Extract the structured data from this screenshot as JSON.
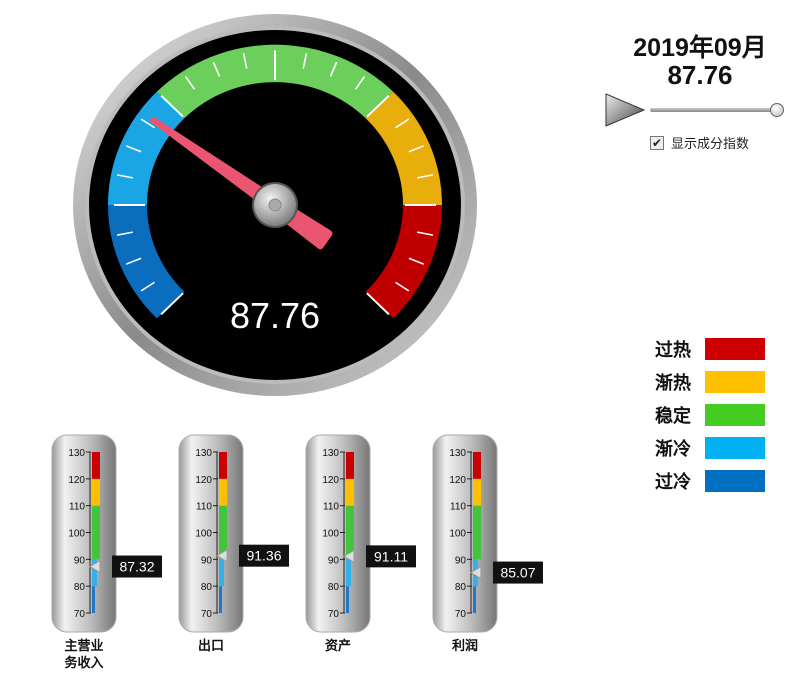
{
  "header": {
    "period": "2019年09月",
    "value": "87.76",
    "checkbox_label": "显示成分指数",
    "checkbox_checked": true,
    "slider_position": 1.0
  },
  "legend": [
    {
      "label": "过热",
      "color": "#cc0000"
    },
    {
      "label": "渐热",
      "color": "#ffc000"
    },
    {
      "label": "稳定",
      "color": "#44cc22"
    },
    {
      "label": "渐冷",
      "color": "#00b0f0"
    },
    {
      "label": "过冷",
      "color": "#0070c0"
    }
  ],
  "chart_data": [
    {
      "type": "gauge",
      "value": 87.76,
      "value_label": "87.76",
      "range": [
        70,
        130
      ],
      "bands": [
        {
          "from": 70,
          "to": 80,
          "color": "#0a6dbd"
        },
        {
          "from": 80,
          "to": 90,
          "color": "#1aa6e4"
        },
        {
          "from": 90,
          "to": 110,
          "color": "#6ccf5c"
        },
        {
          "from": 110,
          "to": 120,
          "color": "#e8ae0c"
        },
        {
          "from": 120,
          "to": 130,
          "color": "#c00000"
        }
      ]
    },
    {
      "type": "bullet",
      "range": [
        70,
        130
      ],
      "ticks": [
        "70",
        "80",
        "90",
        "100",
        "110",
        "120",
        "130"
      ],
      "bands": [
        {
          "from": 70,
          "to": 80,
          "color": "#1f78c8"
        },
        {
          "from": 80,
          "to": 90,
          "color": "#36aee8"
        },
        {
          "from": 90,
          "to": 110,
          "color": "#44c43a"
        },
        {
          "from": 110,
          "to": 120,
          "color": "#ffc000"
        },
        {
          "from": 120,
          "to": 130,
          "color": "#cc0000"
        }
      ],
      "items": [
        {
          "label": "主营业\n务收入",
          "value": 87.32,
          "value_label": "87.32"
        },
        {
          "label": "出口",
          "value": 91.36,
          "value_label": "91.36"
        },
        {
          "label": "资产",
          "value": 91.11,
          "value_label": "91.11"
        },
        {
          "label": "利润",
          "value": 85.07,
          "value_label": "85.07"
        }
      ]
    }
  ]
}
